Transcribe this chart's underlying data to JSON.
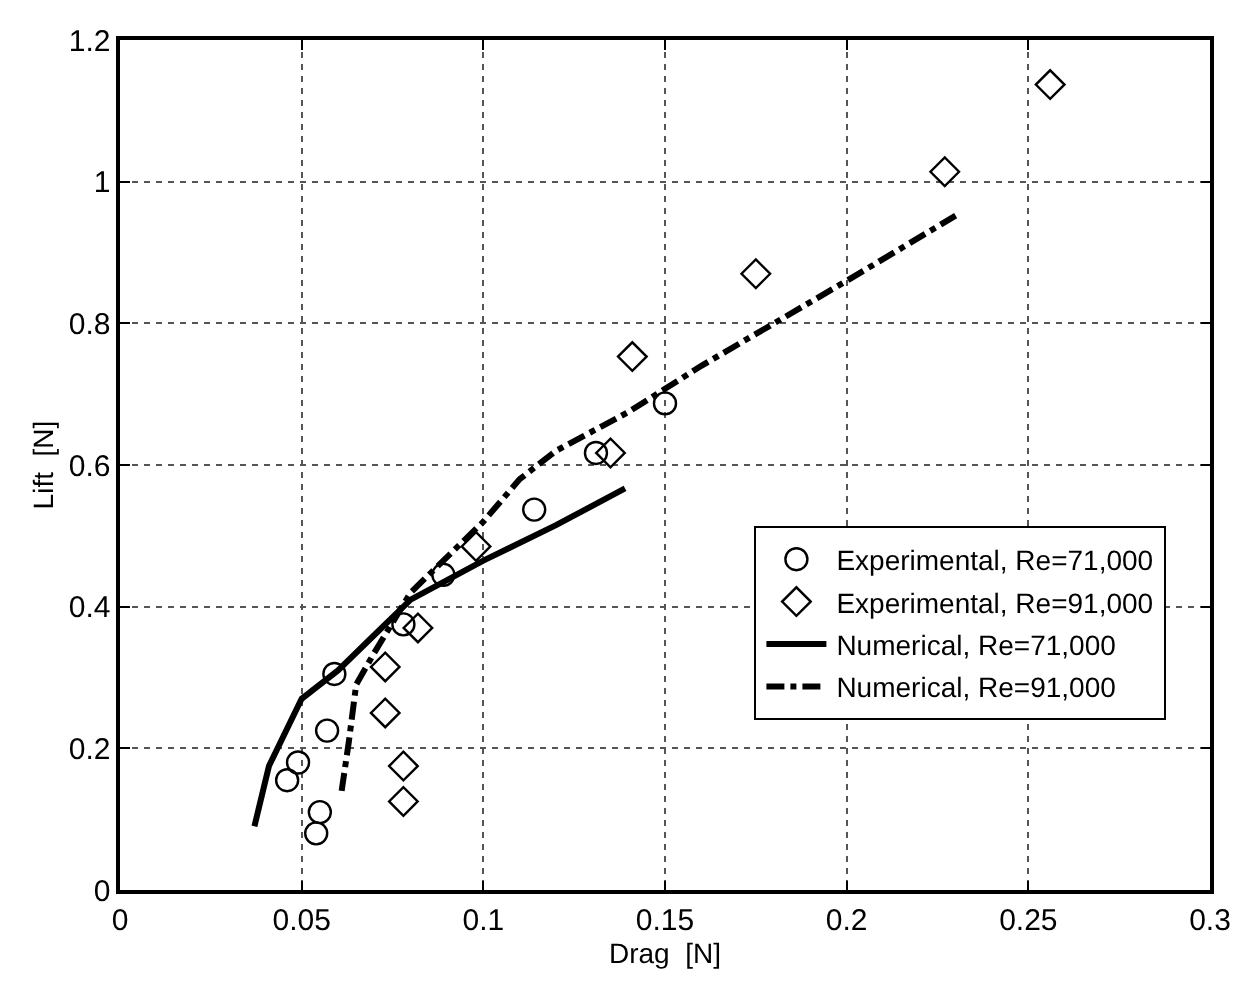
{
  "chart_data": {
    "type": "scatter",
    "xlabel": "Drag  [N]",
    "ylabel": "Lift  [N]",
    "xlim": [
      0,
      0.3
    ],
    "xticks": [
      0,
      0.05,
      0.1,
      0.15,
      0.2,
      0.25,
      0.3
    ],
    "ylim": [
      0,
      1.2
    ],
    "yticks": [
      0,
      0.2,
      0.4,
      0.6,
      0.8,
      1,
      1.2
    ],
    "grid": true,
    "legend": "bottom right",
    "series": [
      {
        "name": "Experimental, Re=71,000",
        "marker": "circle",
        "color": "#000000",
        "x": [
          0.046,
          0.049,
          0.054,
          0.055,
          0.057,
          0.059,
          0.078,
          0.089,
          0.114,
          0.131,
          0.15
        ],
        "values": [
          0.155,
          0.18,
          0.08,
          0.11,
          0.225,
          0.305,
          0.375,
          0.445,
          0.537,
          0.617,
          0.687
        ]
      },
      {
        "name": "Experimental, Re=91,000",
        "marker": "diamond",
        "color": "#000000",
        "x": [
          0.073,
          0.073,
          0.078,
          0.078,
          0.082,
          0.098,
          0.135,
          0.141,
          0.175,
          0.227,
          0.256
        ],
        "values": [
          0.315,
          0.25,
          0.175,
          0.125,
          0.37,
          0.485,
          0.617,
          0.753,
          0.87,
          1.014,
          1.137
        ]
      },
      {
        "name": "Numerical, Re=71,000",
        "type": "line",
        "marker": "none",
        "line_style": "solid",
        "color": "#000000",
        "x": [
          0.037,
          0.041,
          0.05,
          0.06,
          0.07,
          0.08,
          0.1,
          0.12,
          0.139
        ],
        "values": [
          0.09,
          0.175,
          0.27,
          0.31,
          0.36,
          0.41,
          0.465,
          0.515,
          0.567
        ]
      },
      {
        "name": "Numerical, Re=91,000",
        "type": "line",
        "marker": "none",
        "line_style": "dashdot",
        "color": "#000000",
        "x": [
          0.061,
          0.063,
          0.065,
          0.07,
          0.08,
          0.09,
          0.1,
          0.11,
          0.12,
          0.14,
          0.16,
          0.18,
          0.2,
          0.23
        ],
        "values": [
          0.14,
          0.21,
          0.29,
          0.335,
          0.42,
          0.47,
          0.52,
          0.58,
          0.62,
          0.675,
          0.74,
          0.8,
          0.86,
          0.952
        ]
      }
    ]
  }
}
